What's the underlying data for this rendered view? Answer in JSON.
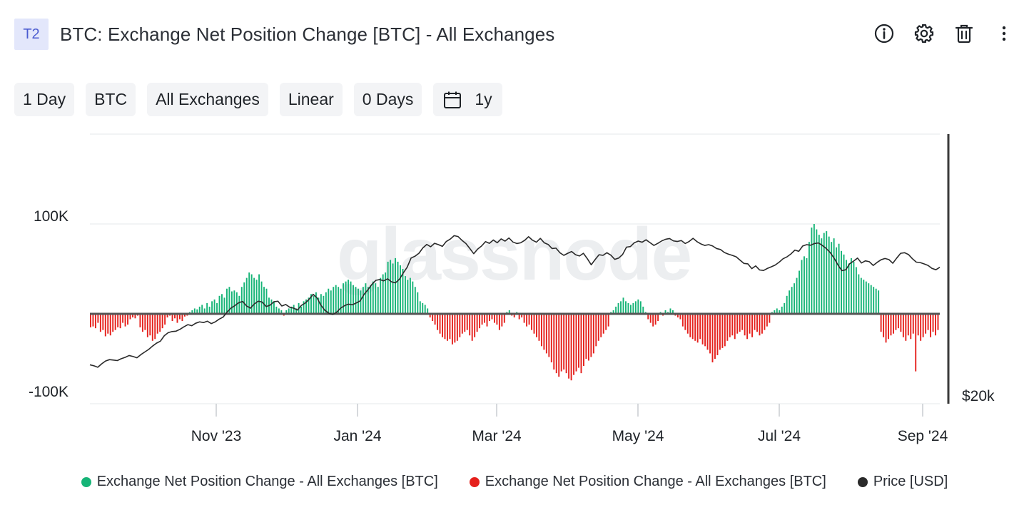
{
  "header": {
    "tag": "T2",
    "title": "BTC: Exchange Net Position Change [BTC] - All Exchanges",
    "icons": [
      "info-icon",
      "gear-icon",
      "trash-icon",
      "more-vertical-icon"
    ]
  },
  "toolbar": {
    "resolution": "1 Day",
    "asset": "BTC",
    "exchange": "All Exchanges",
    "scale": "Linear",
    "moving_average": "0 Days",
    "range": "1y"
  },
  "watermark": "glassnode",
  "colors": {
    "positive": "#16b477",
    "negative": "#e5201c",
    "price": "#2a2a2a",
    "grid": "#e6e8eb"
  },
  "chart_data": {
    "type": "bar",
    "x_ticks": [
      "Nov '23",
      "Jan '24",
      "Mar '24",
      "May '24",
      "Jul '24",
      "Sep '24"
    ],
    "left_axis": {
      "ticks": [
        "100K",
        "-100K"
      ],
      "ylim": [
        -100000,
        100000
      ]
    },
    "right_axis": {
      "ticks": [
        "$20k"
      ],
      "scale": "log",
      "ylim": [
        20000,
        160000
      ]
    },
    "grid": true,
    "legend_position": "bottom",
    "series": [
      {
        "name": "Exchange Net Position Change - All Exchanges [BTC]",
        "sign": "positive",
        "color": "#16b477",
        "values": [
          -15000,
          -14000,
          -16000,
          -10000,
          -20000,
          -18000,
          -25000,
          -22000,
          -24000,
          -20000,
          -18000,
          -15000,
          -16000,
          -10000,
          -14000,
          -12000,
          -6000,
          -4000,
          -5000,
          -2000,
          -15000,
          -20000,
          -18000,
          -26000,
          -24000,
          -30000,
          -28000,
          -22000,
          -20000,
          -16000,
          -12000,
          -4000,
          -2000,
          -8000,
          -5000,
          -10000,
          -6000,
          -8000,
          -3000,
          -2000,
          2000,
          4000,
          6000,
          5000,
          8000,
          10000,
          6000,
          12000,
          8000,
          14000,
          16000,
          12000,
          20000,
          22000,
          18000,
          28000,
          30000,
          25000,
          26000,
          24000,
          20000,
          30000,
          35000,
          40000,
          46000,
          44000,
          40000,
          38000,
          44000,
          36000,
          30000,
          28000,
          18000,
          16000,
          14000,
          8000,
          6000,
          4000,
          -2000,
          4000,
          6000,
          8000,
          10000,
          6000,
          12000,
          8000,
          14000,
          16000,
          18000,
          22000,
          20000,
          24000,
          18000,
          22000,
          20000,
          24000,
          28000,
          26000,
          30000,
          32000,
          30000,
          28000,
          34000,
          36000,
          38000,
          36000,
          32000,
          30000,
          28000,
          26000,
          30000,
          34000,
          30000,
          32000,
          36000,
          34000,
          30000,
          40000,
          44000,
          46000,
          58000,
          60000,
          56000,
          62000,
          58000,
          54000,
          50000,
          42000,
          38000,
          40000,
          36000,
          30000,
          24000,
          14000,
          12000,
          10000,
          6000,
          -4000,
          -8000,
          -12000,
          -18000,
          -22000,
          -26000,
          -28000,
          -30000,
          -28000,
          -34000,
          -32000,
          -30000,
          -26000,
          -22000,
          -20000,
          -18000,
          -24000,
          -30000,
          -26000,
          -20000,
          -16000,
          -12000,
          -10000,
          -14000,
          -8000,
          -6000,
          -10000,
          -12000,
          -18000,
          -14000,
          -10000,
          2000,
          4000,
          -2000,
          -4000,
          2000,
          -6000,
          -4000,
          -10000,
          -14000,
          -12000,
          -18000,
          -22000,
          -26000,
          -30000,
          -36000,
          -40000,
          -44000,
          -48000,
          -54000,
          -62000,
          -66000,
          -70000,
          -64000,
          -62000,
          -66000,
          -72000,
          -74000,
          -68000,
          -64000,
          -60000,
          -66000,
          -58000,
          -50000,
          -52000,
          -48000,
          -44000,
          -36000,
          -30000,
          -26000,
          -22000,
          -18000,
          -14000,
          2000,
          4000,
          8000,
          12000,
          14000,
          18000,
          14000,
          12000,
          10000,
          12000,
          14000,
          16000,
          14000,
          8000,
          2000,
          -6000,
          -10000,
          -14000,
          -12000,
          -8000,
          2000,
          -2000,
          4000,
          2000,
          6000,
          4000,
          -2000,
          -4000,
          -6000,
          -14000,
          -18000,
          -22000,
          -26000,
          -28000,
          -30000,
          -32000,
          -28000,
          -34000,
          -36000,
          -40000,
          -44000,
          -54000,
          -50000,
          -46000,
          -40000,
          -38000,
          -36000,
          -30000,
          -26000,
          -24000,
          -28000,
          -22000,
          -20000,
          -18000,
          -24000,
          -28000,
          -22000,
          -26000,
          -18000,
          -20000,
          -24000,
          -22000,
          -18000,
          -14000,
          -10000,
          2000,
          4000,
          6000,
          4000,
          8000,
          12000,
          20000,
          26000,
          30000,
          34000,
          40000,
          48000,
          60000,
          64000,
          62000,
          80000,
          96000,
          100000,
          94000,
          88000,
          84000,
          90000,
          92000,
          86000,
          80000,
          84000,
          74000,
          78000,
          70000,
          66000,
          60000,
          56000,
          62000,
          58000,
          52000,
          44000,
          40000,
          38000,
          36000,
          34000,
          32000,
          30000,
          28000,
          26000,
          -20000,
          -26000,
          -32000,
          -28000,
          -24000,
          -22000,
          -18000,
          -16000,
          -20000,
          -26000,
          -30000,
          -24000,
          -28000,
          -22000,
          -64000,
          -24000,
          -30000,
          -26000,
          -22000,
          -18000,
          -26000,
          -20000,
          -24000,
          -18000
        ],
        "note_sign": "series split by sign: >=0 green, <0 red"
      },
      {
        "name": "Exchange Net Position Change - All Exchanges [BTC]",
        "sign": "negative",
        "color": "#e5201c"
      },
      {
        "name": "Price [USD]",
        "color": "#2a2a2a",
        "axis": "right",
        "values": [
          27000,
          26800,
          26500,
          27200,
          27800,
          28100,
          28000,
          27900,
          28300,
          28600,
          29000,
          28800,
          28500,
          29200,
          29800,
          30400,
          31200,
          31900,
          32400,
          33800,
          34600,
          34900,
          35000,
          35500,
          36200,
          36800,
          36500,
          37200,
          37600,
          37400,
          37800,
          37100,
          37600,
          38400,
          39000,
          40500,
          41800,
          42600,
          43600,
          44000,
          42500,
          41800,
          43200,
          44100,
          43800,
          42300,
          42800,
          43900,
          44100,
          42500,
          43000,
          42100,
          41800,
          41200,
          42700,
          43500,
          44800,
          46500,
          45200,
          42700,
          41100,
          40200,
          39800,
          40500,
          41800,
          42600,
          43100,
          42900,
          43500,
          44200,
          46500,
          48200,
          50200,
          51800,
          52100,
          51600,
          52400,
          51200,
          50800,
          52200,
          54800,
          57300,
          61500,
          62400,
          63800,
          66500,
          68300,
          67100,
          68900,
          68200,
          67300,
          69900,
          71200,
          73100,
          72600,
          70500,
          68800,
          66200,
          63600,
          65900,
          67500,
          69800,
          68900,
          70700,
          69200,
          71300,
          70100,
          71800,
          69600,
          68800,
          69200,
          70500,
          72500,
          70600,
          69500,
          71600,
          69200,
          68300,
          66200,
          66400,
          64100,
          62800,
          63800,
          64700,
          63100,
          62500,
          63800,
          61200,
          58400,
          60800,
          63100,
          62800,
          64100,
          62900,
          60900,
          61500,
          63200,
          66900,
          67200,
          69200,
          70100,
          69500,
          70800,
          69300,
          67800,
          68900,
          70200,
          71100,
          71500,
          70200,
          69900,
          70400,
          68800,
          69900,
          71600,
          69800,
          68600,
          67800,
          68200,
          67500,
          66200,
          65700,
          64200,
          63400,
          62800,
          62100,
          60500,
          59000,
          58800,
          56700,
          57900,
          56100,
          55900,
          56800,
          57500,
          58300,
          59600,
          61200,
          62100,
          63500,
          65400,
          64800,
          67500,
          68200,
          67900,
          68800,
          69100,
          67800,
          66200,
          64200,
          61500,
          58300,
          55800,
          56200,
          58900,
          60100,
          61500,
          59200,
          60200,
          59800,
          58100,
          59500,
          60700,
          61300,
          60800,
          59100,
          61500,
          63800,
          64100,
          63200,
          61200,
          59600,
          59400,
          58800,
          58100,
          56800,
          56200,
          57300
        ]
      }
    ]
  },
  "legend": [
    {
      "label": "Exchange Net Position Change - All Exchanges [BTC]",
      "color": "#16b477"
    },
    {
      "label": "Exchange Net Position Change - All Exchanges [BTC]",
      "color": "#e5201c"
    },
    {
      "label": "Price [USD]",
      "color": "#2a2a2a"
    }
  ]
}
